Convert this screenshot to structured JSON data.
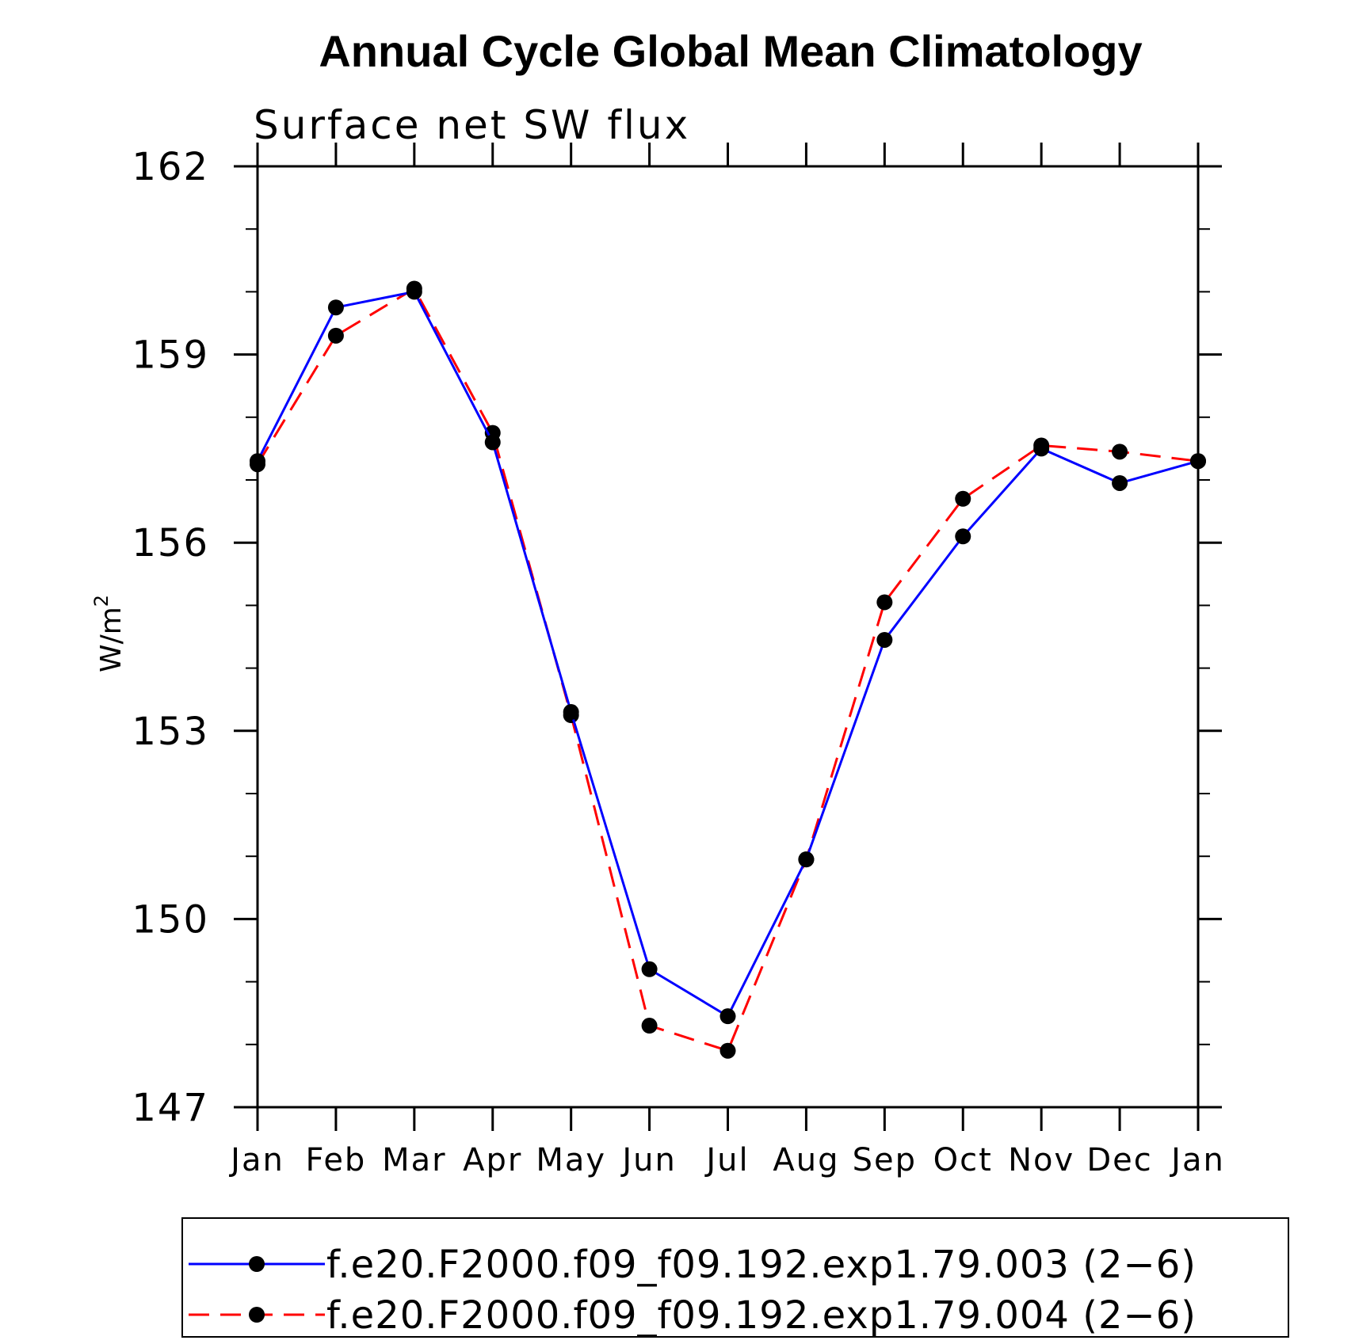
{
  "chart_data": {
    "type": "line",
    "title": "Annual Cycle Global Mean Climatology",
    "subtitle": "Surface net SW flux",
    "ylabel_base": "W/m",
    "ylabel_sup": "2",
    "categories": [
      "Jan",
      "Feb",
      "Mar",
      "Apr",
      "May",
      "Jun",
      "Jul",
      "Aug",
      "Sep",
      "Oct",
      "Nov",
      "Dec",
      "Jan"
    ],
    "ylim": [
      147,
      162
    ],
    "yticks": [
      147,
      150,
      153,
      156,
      159,
      162
    ],
    "yminor_step": 1,
    "grid": false,
    "legend_position": "bottom",
    "series": [
      {
        "name": "f.e20.F2000.f09_f09.192.exp1.79.003 (2−6)",
        "color": "#0000ff",
        "dash": "solid",
        "values": [
          157.3,
          159.75,
          160.0,
          157.6,
          153.3,
          149.2,
          148.45,
          150.95,
          154.45,
          156.1,
          157.5,
          156.95,
          157.3
        ]
      },
      {
        "name": "f.e20.F2000.f09_f09.192.exp1.79.004 (2−6)",
        "color": "#ff0000",
        "dash": "dashed",
        "values": [
          157.25,
          159.3,
          160.05,
          157.75,
          153.25,
          148.3,
          147.9,
          150.95,
          155.05,
          156.7,
          157.55,
          157.45,
          157.3
        ]
      }
    ]
  }
}
